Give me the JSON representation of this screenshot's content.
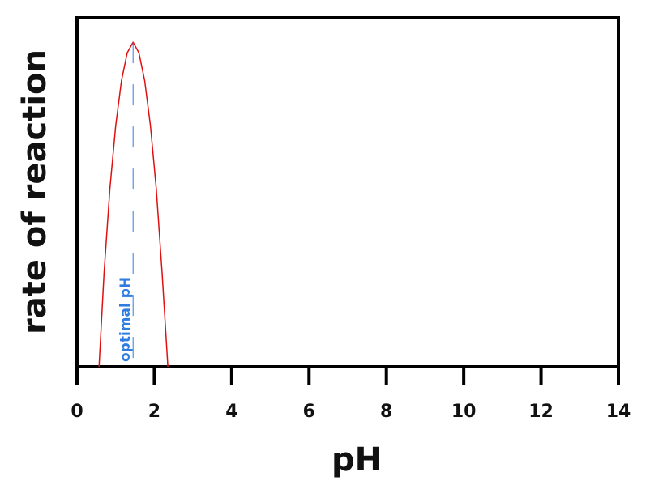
{
  "chart_data": {
    "type": "line",
    "xlabel": "pH",
    "ylabel": "rate of reaction",
    "x": [
      0.57,
      0.7,
      0.85,
      1.0,
      1.15,
      1.3,
      1.45,
      1.6,
      1.75,
      1.9,
      2.05,
      2.2,
      2.35
    ],
    "series": [
      {
        "color": "#e01010",
        "values": [
          0,
          0.27,
          0.51,
          0.69,
          0.82,
          0.9,
          0.93,
          0.9,
          0.82,
          0.69,
          0.51,
          0.27,
          0
        ]
      }
    ],
    "annotation": {
      "text": "optimal pH",
      "x": 1.45,
      "color": "#2f7de1"
    },
    "xlim": [
      0,
      14
    ],
    "xticks": [
      0,
      2,
      4,
      6,
      8,
      10,
      12,
      14
    ],
    "ylim": [
      0,
      1
    ],
    "grid": false
  }
}
